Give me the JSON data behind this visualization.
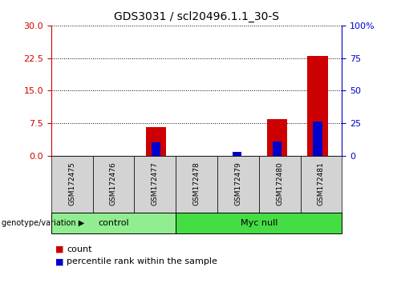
{
  "title": "GDS3031 / scl20496.1.1_30-S",
  "samples": [
    "GSM172475",
    "GSM172476",
    "GSM172477",
    "GSM172478",
    "GSM172479",
    "GSM172480",
    "GSM172481"
  ],
  "count_values": [
    0,
    0,
    6.5,
    0,
    0,
    8.5,
    23.0
  ],
  "percentile_values": [
    0,
    0,
    10,
    0,
    3,
    11,
    26
  ],
  "count_color": "#CC0000",
  "percentile_color": "#0000CC",
  "ylim_left": [
    0,
    30
  ],
  "ylim_right": [
    0,
    100
  ],
  "yticks_left": [
    0,
    7.5,
    15,
    22.5,
    30
  ],
  "yticks_right": [
    0,
    25,
    50,
    75,
    100
  ],
  "ytick_labels_right": [
    "0",
    "25",
    "50",
    "75",
    "100%"
  ],
  "groups": [
    {
      "label": "control",
      "start": 0,
      "end": 3,
      "color": "#90EE90"
    },
    {
      "label": "Myc null",
      "start": 3,
      "end": 7,
      "color": "#44DD44"
    }
  ],
  "group_label": "genotype/variation",
  "legend_count": "count",
  "legend_percentile": "percentile rank within the sample",
  "bar_width": 0.5,
  "tick_label_color_left": "#CC0000",
  "tick_label_color_right": "#0000CC",
  "bg_color": "#FFFFFF",
  "plot_bg_color": "#FFFFFF",
  "sample_box_color": "#D3D3D3"
}
